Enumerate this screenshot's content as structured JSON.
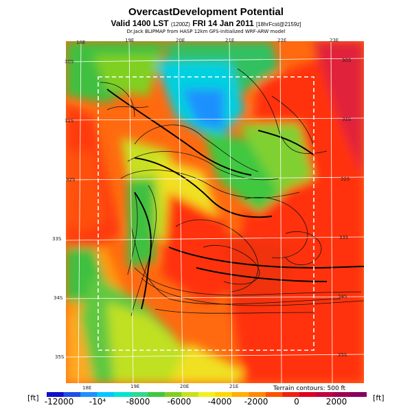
{
  "title": "OvercastDevelopment Potential",
  "subtitle": {
    "valid": "Valid 1400 LST",
    "code": "(1200Z)",
    "date": "FRI 14 Jan 2011",
    "forecast": "[18hrFcst@2159z]"
  },
  "credit": "Dr.Jack BLIPMAP from HASP 12km GFS-initialized WRF-ARW model",
  "top_lon_labels": [
    "18E",
    "19E",
    "20E",
    "21E",
    "22E",
    "23E"
  ],
  "bottom_lon_labels": [
    "18E",
    "19E",
    "20E",
    "21E"
  ],
  "right_lat_labels": [
    "30S",
    "31S",
    "32S",
    "33S",
    "34S",
    "35S"
  ],
  "left_lat_labels": [
    "30S",
    "31S",
    "32S",
    "33S",
    "34S",
    "35S"
  ],
  "contour_note": "Terrain contours: 500 ft",
  "colorbar": {
    "unit": "[ft]",
    "tick_labels": [
      "-12000",
      "-10⁴",
      "-8000",
      "-6000",
      "-4000",
      "-2000",
      "0",
      "2000"
    ],
    "colors": [
      "#1010c8",
      "#2050e6",
      "#1e90ff",
      "#00c8ff",
      "#00e5d0",
      "#30d890",
      "#40c840",
      "#80d020",
      "#c8e020",
      "#f0f020",
      "#ffd800",
      "#ffb000",
      "#ff8800",
      "#ff5000",
      "#f02010",
      "#e00020",
      "#c00040",
      "#a00050",
      "#880060"
    ]
  },
  "chart_data": {
    "type": "heatmap",
    "title": "OvercastDevelopment Potential",
    "colorbar_range": [
      -12000,
      3000
    ],
    "colorbar_unit": "ft",
    "contour_interval_ft": 500
  }
}
